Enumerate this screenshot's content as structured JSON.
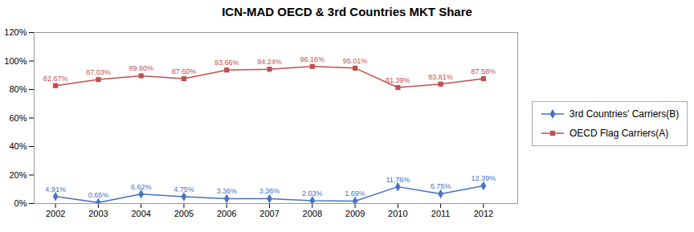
{
  "chart_data": {
    "type": "line",
    "title": "ICN-MAD OECD & 3rd Countries MKT Share",
    "x": [
      2002,
      2003,
      2004,
      2005,
      2006,
      2007,
      2008,
      2009,
      2010,
      2011,
      2012
    ],
    "xlim": [
      2001.5,
      2012.8
    ],
    "xticks": [
      2002,
      2003,
      2004,
      2005,
      2006,
      2007,
      2008,
      2009,
      2010,
      2011,
      2012
    ],
    "ylim": [
      0,
      120
    ],
    "yticks": [
      {
        "value": 0,
        "label": "0%"
      },
      {
        "value": 20,
        "label": "20%"
      },
      {
        "value": 40,
        "label": "40%"
      },
      {
        "value": 60,
        "label": "60%"
      },
      {
        "value": 80,
        "label": "80%"
      },
      {
        "value": 100,
        "label": "100%"
      },
      {
        "value": 120,
        "label": "120%"
      }
    ],
    "grid": false,
    "legend": "right",
    "data_labels": true,
    "series": [
      {
        "name": "3rd Countries' Carriers(B)",
        "color": "#4472C4",
        "marker": "diamond",
        "values": [
          4.91,
          0.65,
          6.62,
          4.75,
          3.36,
          3.36,
          2.03,
          1.69,
          11.76,
          6.75,
          12.39
        ],
        "value_labels": [
          "4.91%",
          "0.65%",
          "6.62%",
          "4.75%",
          "3.36%",
          "3.36%",
          "2.03%",
          "1.69%",
          "11.76%",
          "6.75%",
          "12.39%"
        ]
      },
      {
        "name": "OECD Flag Carriers(A)",
        "color": "#C0504D",
        "marker": "square",
        "values": [
          82.67,
          87.03,
          89.6,
          87.6,
          93.66,
          94.24,
          96.16,
          95.01,
          81.39,
          83.81,
          87.58
        ],
        "value_labels": [
          "82.67%",
          "87.03%",
          "89.60%",
          "87.60%",
          "93.66%",
          "94.24%",
          "96.16%",
          "95.01%",
          "81.39%",
          "83.81%",
          "87.58%"
        ]
      }
    ]
  }
}
